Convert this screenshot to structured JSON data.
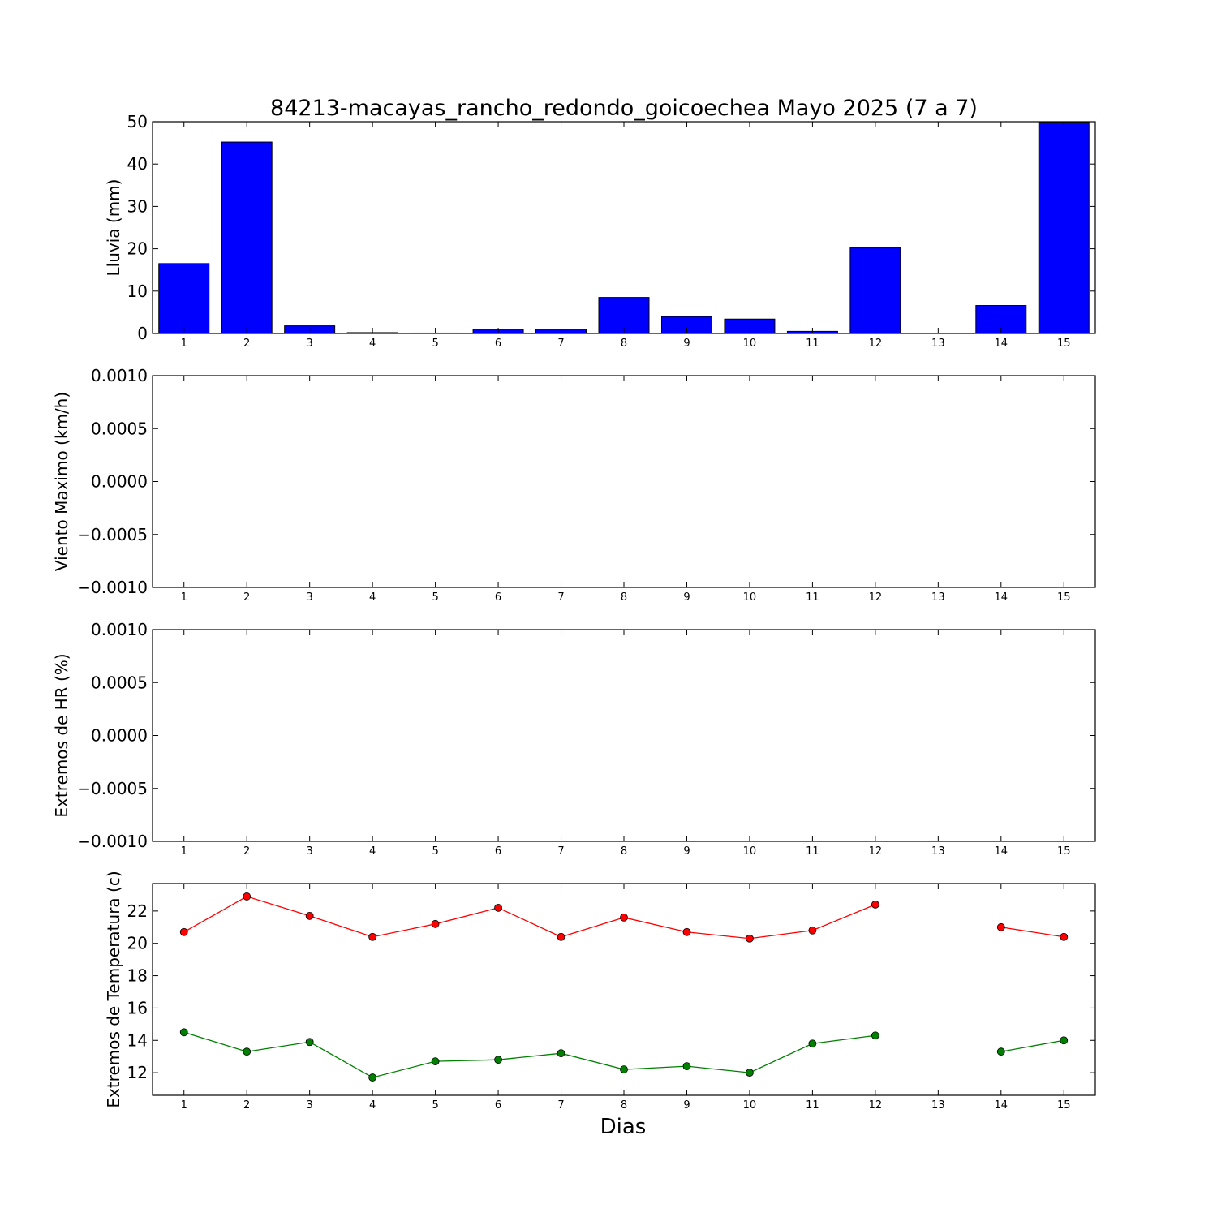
{
  "title": "84213-macayas_rancho_redondo_goicoechea Mayo 2025  (7 a 7)",
  "xlabel": "Dias",
  "colors": {
    "bar": "#0000ff",
    "tmax": "#ff0000",
    "tmin": "#008000",
    "axes": "#000000"
  },
  "chart_data": [
    {
      "type": "bar",
      "categories": [
        "1",
        "2",
        "3",
        "4",
        "5",
        "6",
        "7",
        "8",
        "9",
        "10",
        "11",
        "12",
        "13",
        "14",
        "15"
      ],
      "values": [
        16.5,
        45.2,
        1.8,
        0.2,
        0.1,
        1.0,
        1.0,
        8.5,
        4.0,
        3.4,
        0.5,
        20.2,
        0,
        6.6,
        49.8
      ],
      "ylabel": "Lluvia (mm)",
      "ylim": [
        0,
        50
      ],
      "yticks": [
        "0",
        "10",
        "20",
        "30",
        "40",
        "50"
      ],
      "grid": false
    },
    {
      "type": "line",
      "categories": [
        "1",
        "2",
        "3",
        "4",
        "5",
        "6",
        "7",
        "8",
        "9",
        "10",
        "11",
        "12",
        "13",
        "14",
        "15"
      ],
      "series": [],
      "ylabel": "Viento Maximo (km/h)",
      "ylim": [
        -0.001,
        0.001
      ],
      "yticks": [
        "−0.0010",
        "−0.0005",
        "0.0000",
        "0.0005",
        "0.0010"
      ],
      "grid": false
    },
    {
      "type": "line",
      "categories": [
        "1",
        "2",
        "3",
        "4",
        "5",
        "6",
        "7",
        "8",
        "9",
        "10",
        "11",
        "12",
        "13",
        "14",
        "15"
      ],
      "series": [],
      "ylabel": "Extremos de HR (%)",
      "ylim": [
        -0.001,
        0.001
      ],
      "yticks": [
        "−0.0010",
        "−0.0005",
        "0.0000",
        "0.0005",
        "0.0010"
      ],
      "grid": false
    },
    {
      "type": "line",
      "categories": [
        "1",
        "2",
        "3",
        "4",
        "5",
        "6",
        "7",
        "8",
        "9",
        "10",
        "11",
        "12",
        "13",
        "14",
        "15"
      ],
      "series": [
        {
          "key": "tmax",
          "values": [
            20.7,
            22.9,
            21.7,
            20.4,
            21.2,
            22.2,
            20.4,
            21.6,
            20.7,
            20.3,
            20.8,
            22.4,
            null,
            21.0,
            20.4
          ]
        },
        {
          "key": "tmin",
          "values": [
            14.5,
            13.3,
            13.9,
            11.7,
            12.7,
            12.8,
            13.2,
            12.2,
            12.4,
            12.0,
            13.8,
            14.3,
            null,
            13.3,
            14.0
          ]
        }
      ],
      "ylabel": "Extremos de Temperatura (c)",
      "ylim": [
        10.6,
        23.7
      ],
      "yticks": [
        "12",
        "14",
        "16",
        "18",
        "20",
        "22"
      ],
      "grid": false
    }
  ]
}
